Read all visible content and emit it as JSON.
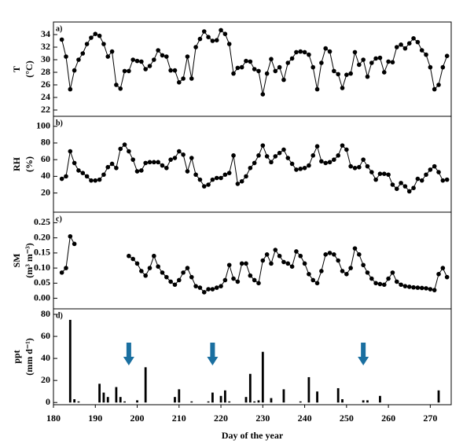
{
  "chart_data": [
    {
      "type": "line",
      "panel": "a)",
      "ylabel": [
        "T",
        "(°C)"
      ],
      "color": "#000000",
      "xlim": [
        180,
        275
      ],
      "ylim": [
        21,
        36
      ],
      "yticks": [
        22,
        24,
        26,
        28,
        30,
        32,
        34
      ],
      "x": [
        182,
        183,
        184,
        185,
        186,
        187,
        188,
        189,
        190,
        191,
        192,
        193,
        194,
        195,
        196,
        197,
        198,
        199,
        200,
        201,
        202,
        203,
        204,
        205,
        206,
        207,
        208,
        209,
        210,
        211,
        212,
        213,
        214,
        215,
        216,
        217,
        218,
        219,
        220,
        221,
        222,
        223,
        224,
        225,
        226,
        227,
        228,
        229,
        230,
        231,
        232,
        233,
        234,
        235,
        236,
        237,
        238,
        239,
        240,
        241,
        242,
        243,
        244,
        245,
        246,
        247,
        248,
        249,
        250,
        251,
        252,
        253,
        254,
        255,
        256,
        257,
        258,
        259,
        260,
        261,
        262,
        263,
        264,
        265,
        266,
        267,
        268,
        269,
        270,
        271,
        272,
        273,
        274
      ],
      "values": [
        33.2,
        30.5,
        25.3,
        28.3,
        30,
        31,
        32.5,
        33.5,
        34.1,
        33.8,
        32.5,
        30.5,
        31.3,
        26,
        25.4,
        28.2,
        28.2,
        30,
        29.8,
        29.7,
        28.5,
        29,
        30,
        31.5,
        30.7,
        30.5,
        28.3,
        28.3,
        26.4,
        27,
        30.5,
        27,
        32,
        33.3,
        34.5,
        33.6,
        33,
        33.1,
        34.7,
        34.1,
        32.5,
        27.8,
        28.7,
        28.8,
        29.8,
        29.7,
        28.5,
        28.2,
        24.5,
        27.8,
        30.1,
        28.2,
        28.8,
        26.8,
        29.5,
        30.2,
        31.2,
        31.3,
        31.2,
        30.8,
        28.8,
        25.3,
        29.5,
        31.8,
        31.3,
        28.2,
        27.7,
        25.5,
        27.6,
        27.8,
        31.2,
        29.2,
        30,
        27.3,
        29.5,
        30.2,
        30.3,
        28,
        29.7,
        29.6,
        32,
        32.4,
        31.8,
        32.6,
        33.4,
        32.8,
        31.5,
        30.8,
        28.8,
        25.3,
        26,
        28.8,
        30.6
      ]
    },
    {
      "type": "line",
      "panel": "b)",
      "ylabel": [
        "RH",
        "(%)"
      ],
      "color": "#000000",
      "xlim": [
        180,
        275
      ],
      "ylim": [
        -3,
        112
      ],
      "yticks": [
        20,
        40,
        60,
        80,
        100
      ],
      "x": [
        182,
        183,
        184,
        185,
        186,
        187,
        188,
        189,
        190,
        191,
        192,
        193,
        194,
        195,
        196,
        197,
        198,
        199,
        200,
        201,
        202,
        203,
        204,
        205,
        206,
        207,
        208,
        209,
        210,
        211,
        212,
        213,
        214,
        215,
        216,
        217,
        218,
        219,
        220,
        221,
        222,
        223,
        224,
        225,
        226,
        227,
        228,
        229,
        230,
        231,
        232,
        233,
        234,
        235,
        236,
        237,
        238,
        239,
        240,
        241,
        242,
        243,
        244,
        245,
        246,
        247,
        248,
        249,
        250,
        251,
        252,
        253,
        254,
        255,
        256,
        257,
        258,
        259,
        260,
        261,
        262,
        263,
        264,
        265,
        266,
        267,
        268,
        269,
        270,
        271,
        272,
        273,
        274
      ],
      "values": [
        37,
        40,
        70,
        56,
        47,
        44,
        40,
        35,
        35,
        36,
        42,
        51,
        55,
        50,
        73,
        78,
        70,
        60,
        46,
        47,
        56,
        57,
        57,
        57,
        53,
        50,
        60,
        62,
        70,
        66,
        46,
        62,
        42,
        36,
        28,
        30,
        36,
        38,
        38,
        42,
        44,
        65,
        31,
        34,
        40,
        50,
        56,
        65,
        77,
        64,
        57,
        64,
        68,
        72,
        62,
        55,
        48,
        49,
        50,
        53,
        65,
        76,
        58,
        56,
        57,
        60,
        65,
        77,
        72,
        52,
        50,
        51,
        60,
        52,
        45,
        36,
        43,
        43,
        42,
        30,
        25,
        32,
        28,
        22,
        26,
        37,
        35,
        42,
        48,
        52,
        45,
        35,
        36
      ]
    },
    {
      "type": "line",
      "panel": "c)",
      "ylabel": [
        "SM",
        "(m³ m⁻³)"
      ],
      "color": "#000000",
      "xlim": [
        180,
        275
      ],
      "ylim": [
        -0.035,
        0.285
      ],
      "yticks": [
        {
          "value": 0,
          "label": "0.00"
        },
        {
          "value": 0.05,
          "label": "0.05"
        },
        {
          "value": 0.1,
          "label": "0.10"
        },
        {
          "value": 0.15,
          "label": "0.15"
        },
        {
          "value": 0.2,
          "label": "0.20"
        },
        {
          "value": 0.25,
          "label": "0.25"
        }
      ],
      "x": [
        182,
        183,
        184,
        185,
        186,
        187,
        188,
        189,
        190,
        191,
        192,
        193,
        194,
        195,
        196,
        197,
        198,
        199,
        200,
        201,
        202,
        203,
        204,
        205,
        206,
        207,
        208,
        209,
        210,
        211,
        212,
        213,
        214,
        215,
        216,
        217,
        218,
        219,
        220,
        221,
        222,
        223,
        224,
        225,
        226,
        227,
        228,
        229,
        230,
        231,
        232,
        233,
        234,
        235,
        236,
        237,
        238,
        239,
        240,
        241,
        242,
        243,
        244,
        245,
        246,
        247,
        248,
        249,
        250,
        251,
        252,
        253,
        254,
        255,
        256,
        257,
        258,
        259,
        260,
        261,
        262,
        263,
        264,
        265,
        266,
        267,
        268,
        269,
        270,
        271,
        272,
        273,
        274
      ],
      "values": [
        0.085,
        0.1,
        0.205,
        0.18,
        null,
        null,
        null,
        null,
        null,
        null,
        null,
        null,
        null,
        null,
        null,
        null,
        0.14,
        0.13,
        0.115,
        0.09,
        0.075,
        0.1,
        0.14,
        0.105,
        0.085,
        0.07,
        0.055,
        0.045,
        0.06,
        0.085,
        0.1,
        0.07,
        0.04,
        0.035,
        0.02,
        0.03,
        0.03,
        0.035,
        0.04,
        0.06,
        0.11,
        0.065,
        0.055,
        0.115,
        0.115,
        0.075,
        0.06,
        0.05,
        0.125,
        0.145,
        0.115,
        0.16,
        0.14,
        0.12,
        0.115,
        0.105,
        0.155,
        0.14,
        0.115,
        0.08,
        0.06,
        0.05,
        0.09,
        0.145,
        0.15,
        0.145,
        0.125,
        0.09,
        0.08,
        0.1,
        0.165,
        0.145,
        0.11,
        0.085,
        0.065,
        0.05,
        0.047,
        0.045,
        0.065,
        0.085,
        0.055,
        0.045,
        0.04,
        0.038,
        0.036,
        0.035,
        0.034,
        0.033,
        0.03,
        0.027,
        0.08,
        0.1,
        0.07
      ]
    },
    {
      "type": "bar",
      "panel": "d)",
      "ylabel": [
        "ppt",
        "(mm d⁻¹)"
      ],
      "color": "#000000",
      "xlim": [
        180,
        275
      ],
      "ylim": [
        -2,
        85
      ],
      "yticks": [
        0,
        20,
        40,
        60,
        80
      ],
      "xticks": [
        180,
        190,
        200,
        210,
        220,
        230,
        240,
        250,
        260,
        270
      ],
      "xlabel": "Day of the year",
      "x": [
        184,
        185,
        186,
        191,
        192,
        193,
        195,
        196,
        197,
        200,
        202,
        209,
        210,
        213,
        217,
        218,
        220,
        221,
        222,
        226,
        227,
        228,
        229,
        230,
        232,
        235,
        239,
        241,
        243,
        248,
        249,
        254,
        255,
        258,
        272
      ],
      "values": [
        75,
        3,
        1,
        17,
        9,
        5,
        14,
        5,
        1,
        2,
        32,
        5,
        12,
        1,
        1,
        9,
        6,
        11,
        1,
        5,
        26,
        1,
        2,
        46,
        4,
        12,
        1,
        23,
        10,
        13,
        3,
        2,
        2,
        6,
        11
      ],
      "markers": [
        198,
        218,
        254
      ],
      "marker_color": "#1a6fa0"
    }
  ]
}
